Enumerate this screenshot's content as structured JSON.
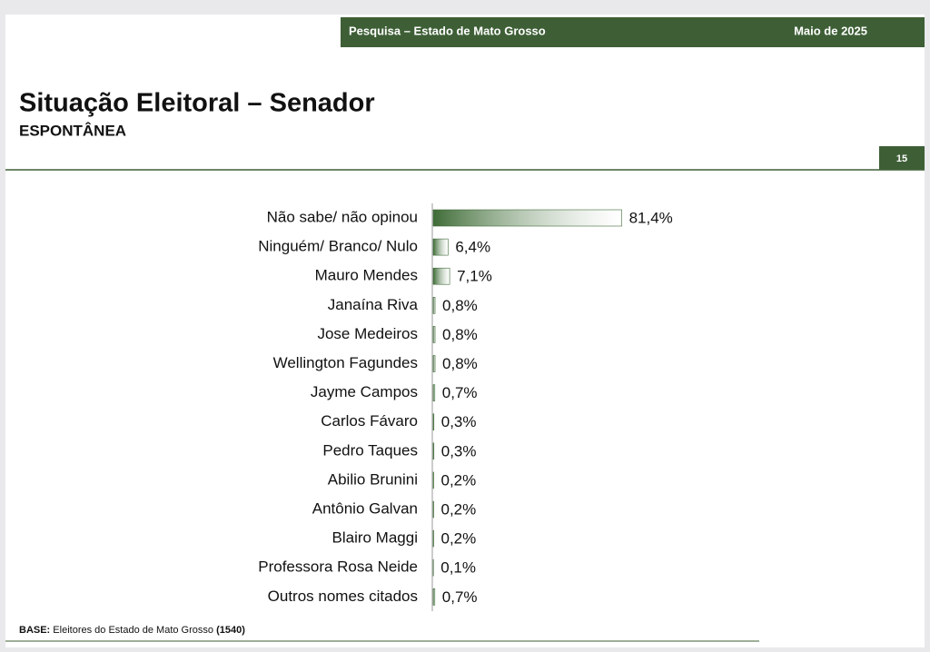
{
  "header": {
    "survey": "Pesquisa – Estado de Mato Grosso",
    "date": "Maio de 2025"
  },
  "page_number": "15",
  "footnote": {
    "label": "BASE:",
    "text": "Eleitores do Estado de Mato Grosso",
    "count": "(1540)"
  },
  "chart_data": {
    "type": "hbar",
    "title": "Situação Eleitoral – Senador",
    "subtitle": "ESPONTÂNEA",
    "categories": [
      "Não sabe/ não opinou",
      "Ninguém/ Branco/ Nulo",
      "Mauro Mendes",
      "Janaína Riva",
      "Jose Medeiros",
      "Wellington Fagundes",
      "Jayme Campos",
      "Carlos Fávaro",
      "Pedro Taques",
      "Abilio Brunini",
      "Antônio Galvan",
      "Blairo Maggi",
      "Professora Rosa Neide",
      "Outros nomes citados"
    ],
    "values": [
      81.4,
      6.4,
      7.1,
      0.8,
      0.8,
      0.8,
      0.7,
      0.3,
      0.3,
      0.2,
      0.2,
      0.2,
      0.1,
      0.7
    ],
    "value_labels": [
      "81,4%",
      "6,4%",
      "7,1%",
      "0,8%",
      "0,8%",
      "0,8%",
      "0,7%",
      "0,3%",
      "0,3%",
      "0,2%",
      "0,2%",
      "0,2%",
      "0,1%",
      "0,7%"
    ],
    "color": "#3f6c37"
  }
}
